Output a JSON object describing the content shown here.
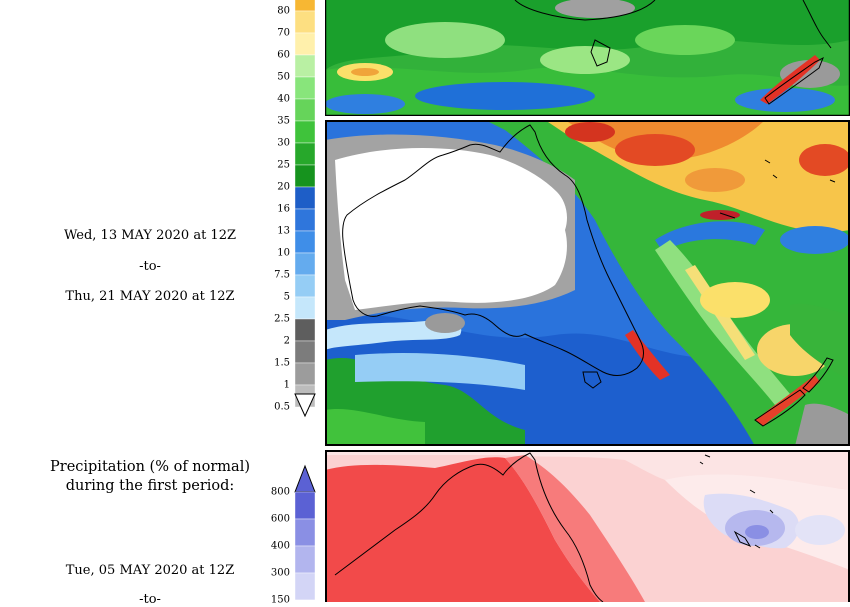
{
  "top_legend": {
    "labels": [
      "80",
      "70",
      "60",
      "50",
      "40",
      "35",
      "30",
      "25",
      "20",
      "16",
      "13",
      "10",
      "7.5",
      "5",
      "2.5",
      "2",
      "1.5",
      "1",
      "0.5"
    ],
    "colors": [
      "#f7b733",
      "#fddf81",
      "#fff0ab",
      "#b9f0a3",
      "#88e57b",
      "#66d45a",
      "#3fc33b",
      "#27a82b",
      "#16931e",
      "#1e5ec7",
      "#2f76dc",
      "#3f8ee8",
      "#64abee",
      "#95cdf5",
      "#c5e7fb",
      "#5e5e5e",
      "#7c7c7c",
      "#9c9c9c",
      "#bcbcbc"
    ]
  },
  "date_range": {
    "start": "Wed, 13 MAY 2020 at 12Z",
    "separator": "-to-",
    "end": "Thu, 21 MAY 2020 at 12Z"
  },
  "bottom_legend": {
    "title_line1": "Precipitation (% of normal)",
    "title_line2": "during the first period:",
    "labels": [
      "800",
      "600",
      "400",
      "300",
      "150"
    ],
    "colors": [
      "#5b61d4",
      "#8a8fe4",
      "#b2b5ee",
      "#d3d5f6",
      "#eaebfb"
    ],
    "start": "Tue, 05 MAY 2020 at 12Z",
    "separator": "-to-"
  }
}
